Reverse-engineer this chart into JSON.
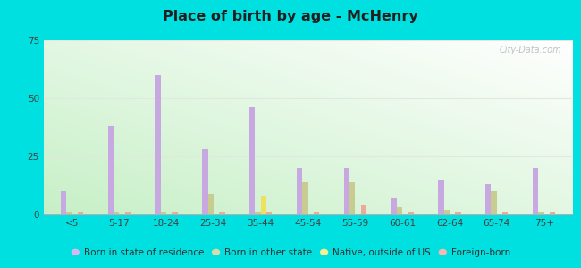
{
  "title": "Place of birth by age - McHenry",
  "categories": [
    "<5",
    "5-17",
    "18-24",
    "25-34",
    "35-44",
    "45-54",
    "55-59",
    "60-61",
    "62-64",
    "65-74",
    "75+"
  ],
  "series": {
    "Born in state of residence": [
      10,
      38,
      60,
      28,
      46,
      20,
      20,
      7,
      15,
      13,
      20
    ],
    "Born in other state": [
      1,
      1,
      1,
      9,
      1,
      14,
      14,
      3,
      2,
      10,
      1
    ],
    "Native, outside of US": [
      0,
      0,
      0,
      0,
      8,
      0,
      0,
      0,
      0,
      0,
      0
    ],
    "Foreign-born": [
      1,
      1,
      1,
      1,
      1,
      1,
      4,
      1,
      1,
      1,
      1
    ]
  },
  "colors": {
    "Born in state of residence": "#c8a8e0",
    "Born in other state": "#c8cc90",
    "Native, outside of US": "#f0e060",
    "Foreign-born": "#f0a898"
  },
  "legend_colors": {
    "Born in state of residence": "#d8b8f0",
    "Born in other state": "#d8dca8",
    "Native, outside of US": "#f8f090",
    "Foreign-born": "#f8b8b0"
  },
  "ylim": [
    0,
    75
  ],
  "yticks": [
    0,
    25,
    50,
    75
  ],
  "bg_left_bottom": "#c8f0c8",
  "bg_right_top": "#f0f8f0",
  "outer_background": "#00e0e0",
  "bar_width": 0.12,
  "grid_color": "#e0e8e0",
  "watermark": "City-Data.com"
}
